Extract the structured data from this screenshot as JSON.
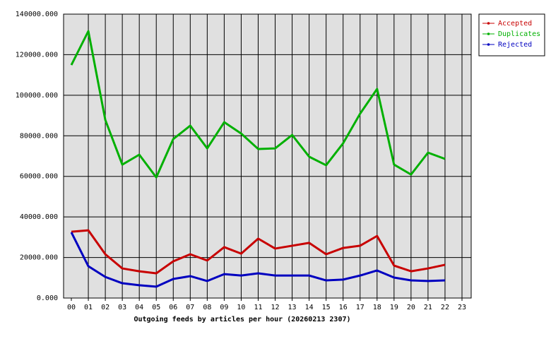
{
  "chart_data": {
    "type": "line",
    "xlabel": "Outgoing feeds by articles per hour (20260213 2307)",
    "categories": [
      "00",
      "01",
      "02",
      "03",
      "04",
      "05",
      "06",
      "07",
      "08",
      "09",
      "10",
      "11",
      "12",
      "13",
      "14",
      "15",
      "16",
      "17",
      "18",
      "19",
      "20",
      "21",
      "22",
      "23"
    ],
    "series": [
      {
        "name": "Accepted",
        "color": "#c80000",
        "values": [
          32700,
          33400,
          21600,
          14600,
          13200,
          12200,
          18100,
          21600,
          18500,
          25100,
          21900,
          29300,
          24400,
          25800,
          27200,
          21600,
          24700,
          25800,
          30600,
          16000,
          13200,
          14600,
          16400,
          null
        ]
      },
      {
        "name": "Duplicates",
        "color": "#00b000",
        "values": [
          114900,
          131600,
          87800,
          65800,
          70700,
          59500,
          78400,
          85000,
          73800,
          86700,
          81100,
          73500,
          73800,
          80400,
          69700,
          65500,
          76300,
          90900,
          103100,
          65800,
          60900,
          71700,
          68600,
          null
        ]
      },
      {
        "name": "Rejected",
        "color": "#0000c0",
        "values": [
          32400,
          15700,
          10400,
          7300,
          6300,
          5600,
          9400,
          10800,
          8400,
          11800,
          11100,
          12200,
          11100,
          11100,
          11100,
          8700,
          9100,
          11100,
          13600,
          10100,
          8700,
          8400,
          8700,
          null
        ]
      }
    ],
    "ylim": [
      0,
      140000
    ],
    "yticks": [
      {
        "value": 0,
        "label": "0.000"
      },
      {
        "value": 20000,
        "label": "20000.000"
      },
      {
        "value": 40000,
        "label": "40000.000"
      },
      {
        "value": 60000,
        "label": "60000.000"
      },
      {
        "value": 80000,
        "label": "80000.000"
      },
      {
        "value": 100000,
        "label": "100000.000"
      },
      {
        "value": 120000,
        "label": "120000.000"
      },
      {
        "value": 140000,
        "label": "140000.000"
      }
    ],
    "grid": true,
    "legend": "outside-right"
  }
}
